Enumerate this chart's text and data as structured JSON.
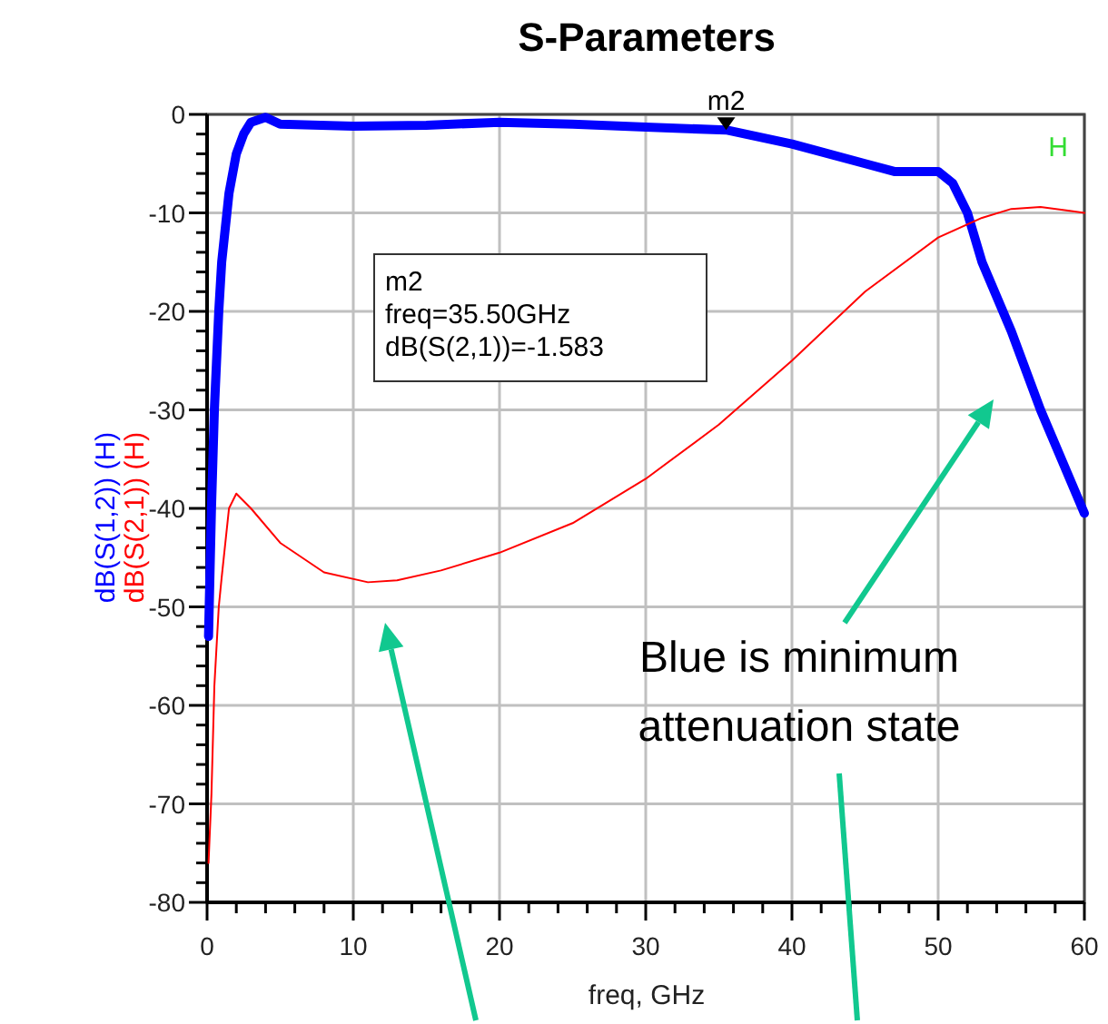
{
  "chart_data": {
    "type": "line",
    "title": "S-Parameters",
    "xlabel": "freq, GHz",
    "xlim": [
      0,
      60
    ],
    "xticks": [
      0,
      {
        "value": 2,
        "label": null
      },
      {
        "value": 4,
        "label": null
      },
      {
        "value": 6,
        "label": null
      },
      {
        "value": 8,
        "label": null
      },
      10,
      {
        "value": 12,
        "label": null
      },
      {
        "value": 14,
        "label": null
      },
      {
        "value": 16,
        "label": null
      },
      {
        "value": 18,
        "label": null
      },
      20,
      {
        "value": 22,
        "label": null
      },
      {
        "value": 24,
        "label": null
      },
      {
        "value": 26,
        "label": null
      },
      {
        "value": 28,
        "label": null
      },
      30,
      {
        "value": 32,
        "label": null
      },
      {
        "value": 34,
        "label": null
      },
      {
        "value": 36,
        "label": null
      },
      {
        "value": 38,
        "label": null
      },
      40,
      {
        "value": 42,
        "label": null
      },
      {
        "value": 44,
        "label": null
      },
      {
        "value": 46,
        "label": null
      },
      {
        "value": 48,
        "label": null
      },
      50,
      {
        "value": 52,
        "label": null
      },
      {
        "value": 54,
        "label": null
      },
      {
        "value": 56,
        "label": null
      },
      {
        "value": 58,
        "label": null
      },
      60
    ],
    "ylim": [
      -80,
      0
    ],
    "yticks": [
      -80,
      {
        "value": -78,
        "label": null
      },
      {
        "value": -76,
        "label": null
      },
      {
        "value": -74,
        "label": null
      },
      {
        "value": -72,
        "label": null
      },
      -70,
      {
        "value": -68,
        "label": null
      },
      {
        "value": -66,
        "label": null
      },
      {
        "value": -64,
        "label": null
      },
      {
        "value": -62,
        "label": null
      },
      -60,
      {
        "value": -58,
        "label": null
      },
      {
        "value": -56,
        "label": null
      },
      {
        "value": -54,
        "label": null
      },
      {
        "value": -52,
        "label": null
      },
      -50,
      {
        "value": -48,
        "label": null
      },
      {
        "value": -46,
        "label": null
      },
      {
        "value": -44,
        "label": null
      },
      {
        "value": -42,
        "label": null
      },
      -40,
      {
        "value": -38,
        "label": null
      },
      {
        "value": -36,
        "label": null
      },
      {
        "value": -34,
        "label": null
      },
      {
        "value": -32,
        "label": null
      },
      -30,
      {
        "value": -28,
        "label": null
      },
      {
        "value": -26,
        "label": null
      },
      {
        "value": -24,
        "label": null
      },
      {
        "value": -22,
        "label": null
      },
      -20,
      {
        "value": -18,
        "label": null
      },
      {
        "value": -16,
        "label": null
      },
      {
        "value": -14,
        "label": null
      },
      {
        "value": -12,
        "label": null
      },
      -10,
      {
        "value": -8,
        "label": null
      },
      {
        "value": -6,
        "label": null
      },
      {
        "value": -4,
        "label": null
      },
      {
        "value": -2,
        "label": null
      },
      0
    ],
    "grid": true,
    "legend": "left",
    "marker": "none",
    "line_style": "solid",
    "series": [
      {
        "name": "dB(S(1,2)) (H)",
        "color": "#0000ff",
        "x": [
          0.1,
          0.3,
          0.5,
          0.8,
          1,
          1.5,
          2,
          2.5,
          3,
          4,
          5,
          10,
          15,
          20,
          25,
          30,
          35.5,
          40,
          45,
          47,
          49,
          50,
          51,
          52,
          53,
          55,
          57,
          60
        ],
        "values": [
          -53,
          -40,
          -30,
          -20,
          -15,
          -8,
          -4,
          -2,
          -0.8,
          -0.3,
          -1,
          -1.2,
          -1.1,
          -0.8,
          -1,
          -1.3,
          -1.583,
          -3,
          -5,
          -5.8,
          -5.8,
          -5.8,
          -7,
          -10,
          -15,
          -22,
          -30,
          -40.5
        ]
      },
      {
        "name": "dB(S(2,1)) (H)",
        "color": "#ff0000",
        "x": [
          0.1,
          0.3,
          0.5,
          0.8,
          1,
          1.5,
          2,
          3,
          5,
          8,
          11,
          13,
          16,
          20,
          25,
          30,
          35,
          40,
          45,
          50,
          53,
          55,
          57,
          59,
          60
        ],
        "values": [
          -76,
          -69,
          -58,
          -50,
          -47,
          -40,
          -38.5,
          -40,
          -43.5,
          -46.5,
          -47.5,
          -47.3,
          -46.3,
          -44.5,
          -41.5,
          -37,
          -31.5,
          -25,
          -18,
          -12.5,
          -10.5,
          -9.6,
          -9.4,
          -9.8,
          -10
        ]
      }
    ],
    "annotations": [
      {
        "text": "m2",
        "x": 35.5,
        "y": -1.583
      },
      "m2\nfreq=35.50GHz\ndB(S(2,1))=-1.583",
      "H",
      "Blue is minimum attenuation state"
    ]
  }
}
